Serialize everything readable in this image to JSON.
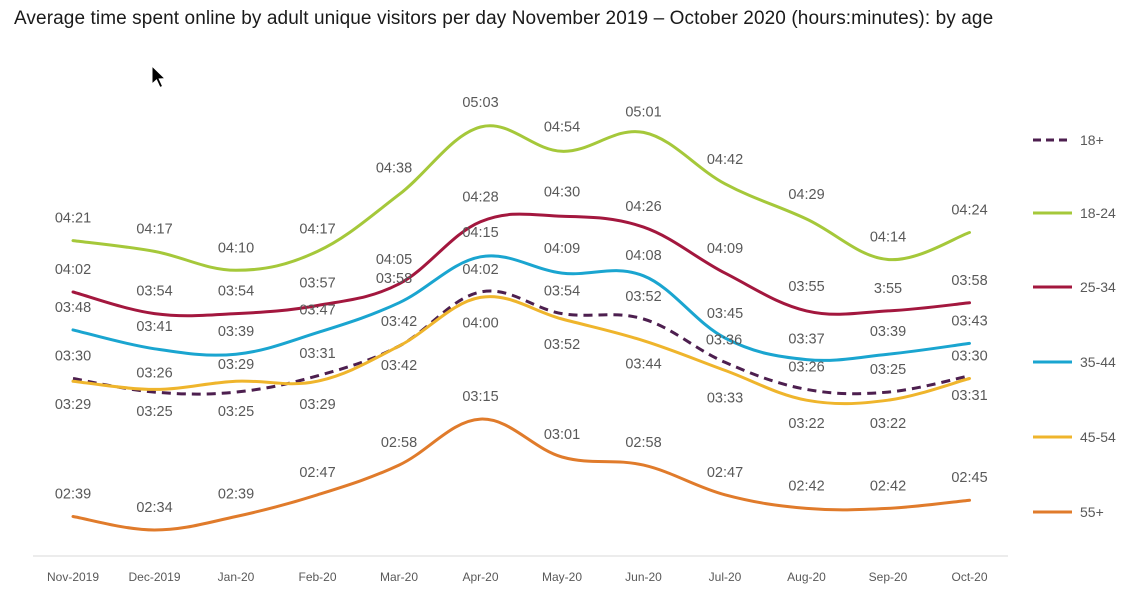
{
  "chart_data": {
    "type": "line",
    "title": "Average time spent online by adult unique visitors per day November 2019 – October 2020 (hours:minutes): by age",
    "categories": [
      "Nov-2019",
      "Dec-2019",
      "Jan-20",
      "Feb-20",
      "Mar-20",
      "Apr-20",
      "May-20",
      "Jun-20",
      "Jul-20",
      "Aug-20",
      "Sep-20",
      "Oct-20"
    ],
    "series": [
      {
        "name": "18+",
        "color": "#4d1f4f",
        "dashed": true,
        "values": [
          "03:30",
          "03:25",
          "03:25",
          "03:31",
          "03:42",
          "04:02",
          "03:54",
          "03:52",
          "03:36",
          "03:26",
          "03:25",
          "03:31"
        ],
        "labels": [
          "03:30",
          "03:25",
          "03:25",
          "03:31",
          "03:42",
          "04:02",
          "03:54",
          "03:52",
          "03:36",
          "03:26",
          "03:25",
          "03:31"
        ]
      },
      {
        "name": "18-24",
        "color": "#a5c83a",
        "dashed": false,
        "values": [
          "04:21",
          "04:17",
          "04:10",
          "04:17",
          "04:38",
          "05:03",
          "04:54",
          "05:01",
          "04:42",
          "04:29",
          "04:14",
          "04:24"
        ],
        "labels": [
          "04:21",
          "04:17",
          "04:10",
          "04:17",
          "04:38",
          "05:03",
          "04:54",
          "05:01",
          "04:42",
          "04:29",
          "04:14",
          "04:24"
        ]
      },
      {
        "name": "25-34",
        "color": "#a3173e",
        "dashed": false,
        "values": [
          "04:02",
          "03:54",
          "03:54",
          "03:57",
          "04:05",
          "04:28",
          "04:30",
          "04:26",
          "04:09",
          "03:55",
          "3:55",
          "03:58"
        ],
        "labels": [
          "04:02",
          "03:54",
          "03:54",
          "03:57",
          "04:05",
          "04:28",
          "04:30",
          "04:26",
          "04:09",
          "03:55",
          "3:55",
          "03:58"
        ]
      },
      {
        "name": "35-44",
        "color": "#1aa5d0",
        "dashed": false,
        "values": [
          "03:48",
          "03:41",
          "03:39",
          "03:47",
          "03:58",
          "04:15",
          "04:09",
          "04:08",
          "03:45",
          "03:37",
          "03:39",
          "03:43"
        ],
        "labels": [
          "03:48",
          "03:41",
          "03:39",
          "03:47",
          "03:58",
          "04:15",
          "04:09",
          "04:08",
          "03:45",
          "03:37",
          "03:39",
          "03:43"
        ]
      },
      {
        "name": "45-54",
        "color": "#efb52c",
        "dashed": false,
        "values": [
          "03:29",
          "03:26",
          "03:29",
          "03:29",
          "03:42",
          "04:00",
          "03:52",
          "03:44",
          "03:33",
          "03:22",
          "03:22",
          "03:30"
        ],
        "labels": [
          "03:29",
          "03:26",
          "03:29",
          "03:29",
          "03:42",
          "04:00",
          "03:52",
          "03:44",
          "03:33",
          "03:22",
          "03:22",
          "03:30"
        ]
      },
      {
        "name": "55+",
        "color": "#e07b2b",
        "dashed": false,
        "values": [
          "02:39",
          "02:34",
          "02:39",
          "02:47",
          "02:58",
          "03:15",
          "03:01",
          "02:58",
          "02:47",
          "02:42",
          "02:42",
          "02:45"
        ],
        "labels": [
          "02:39",
          "02:34",
          "02:39",
          "02:47",
          "02:58",
          "03:15",
          "03:01",
          "02:58",
          "02:47",
          "02:42",
          "02:42",
          "02:45"
        ]
      }
    ],
    "legend": "right",
    "grid": false,
    "ylim": [
      "02:25",
      "05:10"
    ]
  }
}
